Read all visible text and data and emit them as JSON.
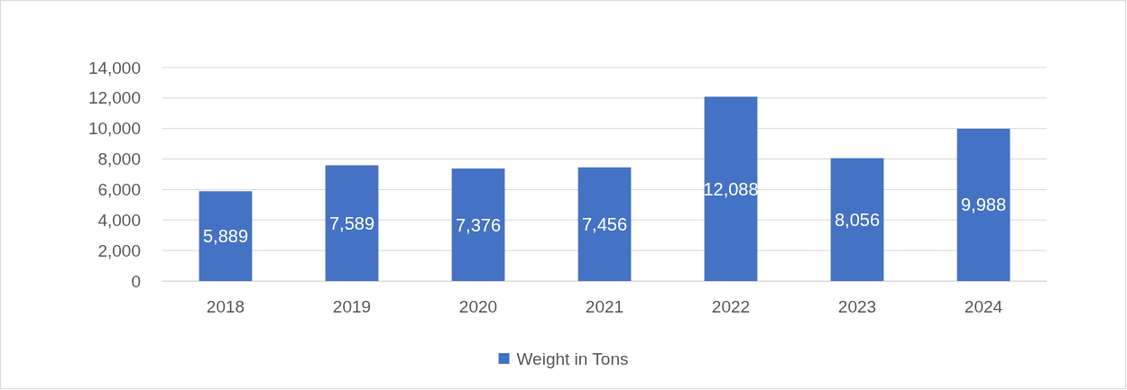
{
  "chart_data": {
    "type": "bar",
    "categories": [
      "2018",
      "2019",
      "2020",
      "2021",
      "2022",
      "2023",
      "2024"
    ],
    "series": [
      {
        "name": "Weight in Tons",
        "color": "#4472c4",
        "values": [
          5889,
          7589,
          7376,
          7456,
          12088,
          8056,
          9988
        ],
        "value_labels": [
          "5,889",
          "7,589",
          "7,376",
          "7,456",
          "12,088",
          "8,056",
          "9,988"
        ]
      }
    ],
    "ylim": [
      0,
      14000
    ],
    "yticks": [
      0,
      {
        "value": 2000,
        "label": "2,000"
      },
      {
        "value": 4000,
        "label": "4,000"
      },
      {
        "value": 6000,
        "label": "6,000"
      },
      {
        "value": 8000,
        "label": "8,000"
      },
      {
        "value": 10000,
        "label": "10,000"
      },
      {
        "value": 12000,
        "label": "12,000"
      },
      {
        "value": 14000,
        "label": "14,000"
      }
    ],
    "grid": "y",
    "legend": "bottom"
  }
}
